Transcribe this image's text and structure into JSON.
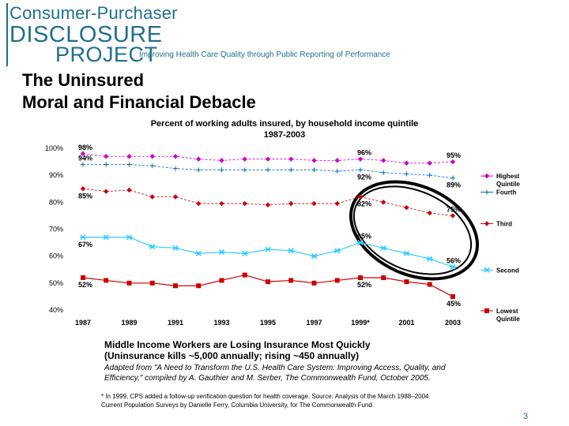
{
  "logo": {
    "line1": "Consumer-Purchaser",
    "line2": "DISCLOSURE",
    "line3": "PROJECT",
    "tagline": "Improving Health Care Quality through Public Reporting of Performance"
  },
  "slide_title": {
    "line1": "The Uninsured",
    "line2": "Moral and Financial Debacle"
  },
  "notes": {
    "headline1": "Middle Income Workers are Losing Insurance Most Quickly",
    "headline2": "(Uninsurance kills ~5,000 annually; rising ~450 annually)",
    "source1": "Adapted from \"A Need to Transform the U.S. Health Care System: Improving Access, Quality, and",
    "source2": "Efficiency,\" compiled by A. Gauthier and M. Serber, The Commonwealth Fund, October 2005.",
    "footnote1": "* In 1999, CPS added a follow-up verification question for health coverage.  Source: Analysis of the March 1988–2004",
    "footnote2": "Current Population Surveys by Danielle Ferry, Columbia University, for The Commonwealth Fund."
  },
  "page_number": "3",
  "colors": {
    "highest": "#cc00cc",
    "fourth": "#0066cc",
    "third": "#cc0000",
    "second": "#33ccff",
    "lowest": "#cc0000",
    "logo": "#1f6f8b"
  },
  "chart_data": {
    "type": "line",
    "title_line1": "Percent of working adults insured, by household income quintile",
    "title_line2": "1987-2003",
    "x": [
      1987,
      1988,
      1989,
      1990,
      1991,
      1992,
      1993,
      1994,
      1995,
      1996,
      1997,
      1998,
      1999,
      2000,
      2001,
      2002,
      2003
    ],
    "x_tick_labels": [
      "1987",
      "1989",
      "1991",
      "1993",
      "1995",
      "1997",
      "1999*",
      "2001",
      "2003"
    ],
    "y_tick_labels": [
      "100%",
      "90%",
      "80%",
      "70%",
      "60%",
      "50%",
      "40%"
    ],
    "ylim": [
      40,
      100
    ],
    "series": [
      {
        "name": "Highest Quintile",
        "legend": [
          "Highest",
          "Quintile"
        ],
        "color": "#cc00cc",
        "marker": "diamond",
        "values": [
          98,
          97,
          97,
          97,
          97,
          96,
          95.5,
          96,
          96,
          96,
          95.5,
          95.5,
          96,
          95.5,
          94.5,
          94.5,
          95
        ]
      },
      {
        "name": "Fourth",
        "legend": [
          "Fourth"
        ],
        "color": "#0066cc",
        "marker": "plus",
        "values": [
          94,
          94,
          94,
          93.5,
          92.5,
          92,
          92,
          92,
          92,
          92,
          92,
          91.5,
          92,
          91,
          90.5,
          90,
          89
        ]
      },
      {
        "name": "Third",
        "legend": [
          "Third"
        ],
        "color": "#cc0000",
        "marker": "diamond",
        "values": [
          85,
          84,
          84.5,
          82,
          82,
          79.5,
          79.5,
          79.5,
          79,
          79.5,
          79.5,
          79.5,
          82,
          80,
          78,
          76,
          75
        ]
      },
      {
        "name": "Second",
        "legend": [
          "Second"
        ],
        "color": "#33ccff",
        "marker": "star",
        "values": [
          67,
          67,
          67,
          63.5,
          63,
          61,
          61.5,
          61,
          62.5,
          62,
          60,
          62,
          65,
          63,
          61,
          59,
          56
        ]
      },
      {
        "name": "Lowest Quintile",
        "legend": [
          "Lowest",
          "Quintile"
        ],
        "color": "#cc0000",
        "marker": "square",
        "values": [
          52,
          51,
          50,
          50,
          49,
          49,
          51,
          53,
          50.5,
          51,
          50,
          51,
          52,
          52,
          50.5,
          49.5,
          45
        ]
      }
    ],
    "data_labels": [
      {
        "text": "98%",
        "series": 0,
        "index": 0,
        "pos": "above"
      },
      {
        "text": "96%",
        "series": 0,
        "index": 12,
        "pos": "above"
      },
      {
        "text": "95%",
        "series": 0,
        "index": 16,
        "pos": "above"
      },
      {
        "text": "94%",
        "series": 1,
        "index": 0,
        "pos": "above"
      },
      {
        "text": "92%",
        "series": 1,
        "index": 12,
        "pos": "below"
      },
      {
        "text": "89%",
        "series": 1,
        "index": 16,
        "pos": "below"
      },
      {
        "text": "85%",
        "series": 2,
        "index": 0,
        "pos": "below"
      },
      {
        "text": "82%",
        "series": 2,
        "index": 12,
        "pos": "below"
      },
      {
        "text": "75%",
        "series": 2,
        "index": 16,
        "pos": "above"
      },
      {
        "text": "67%",
        "series": 3,
        "index": 0,
        "pos": "below"
      },
      {
        "text": "65%",
        "series": 3,
        "index": 12,
        "pos": "above"
      },
      {
        "text": "56%",
        "series": 3,
        "index": 16,
        "pos": "above"
      },
      {
        "text": "52%",
        "series": 4,
        "index": 0,
        "pos": "below"
      },
      {
        "text": "52%",
        "series": 4,
        "index": 12,
        "pos": "below"
      },
      {
        "text": "45%",
        "series": 4,
        "index": 16,
        "pos": "below"
      }
    ]
  }
}
